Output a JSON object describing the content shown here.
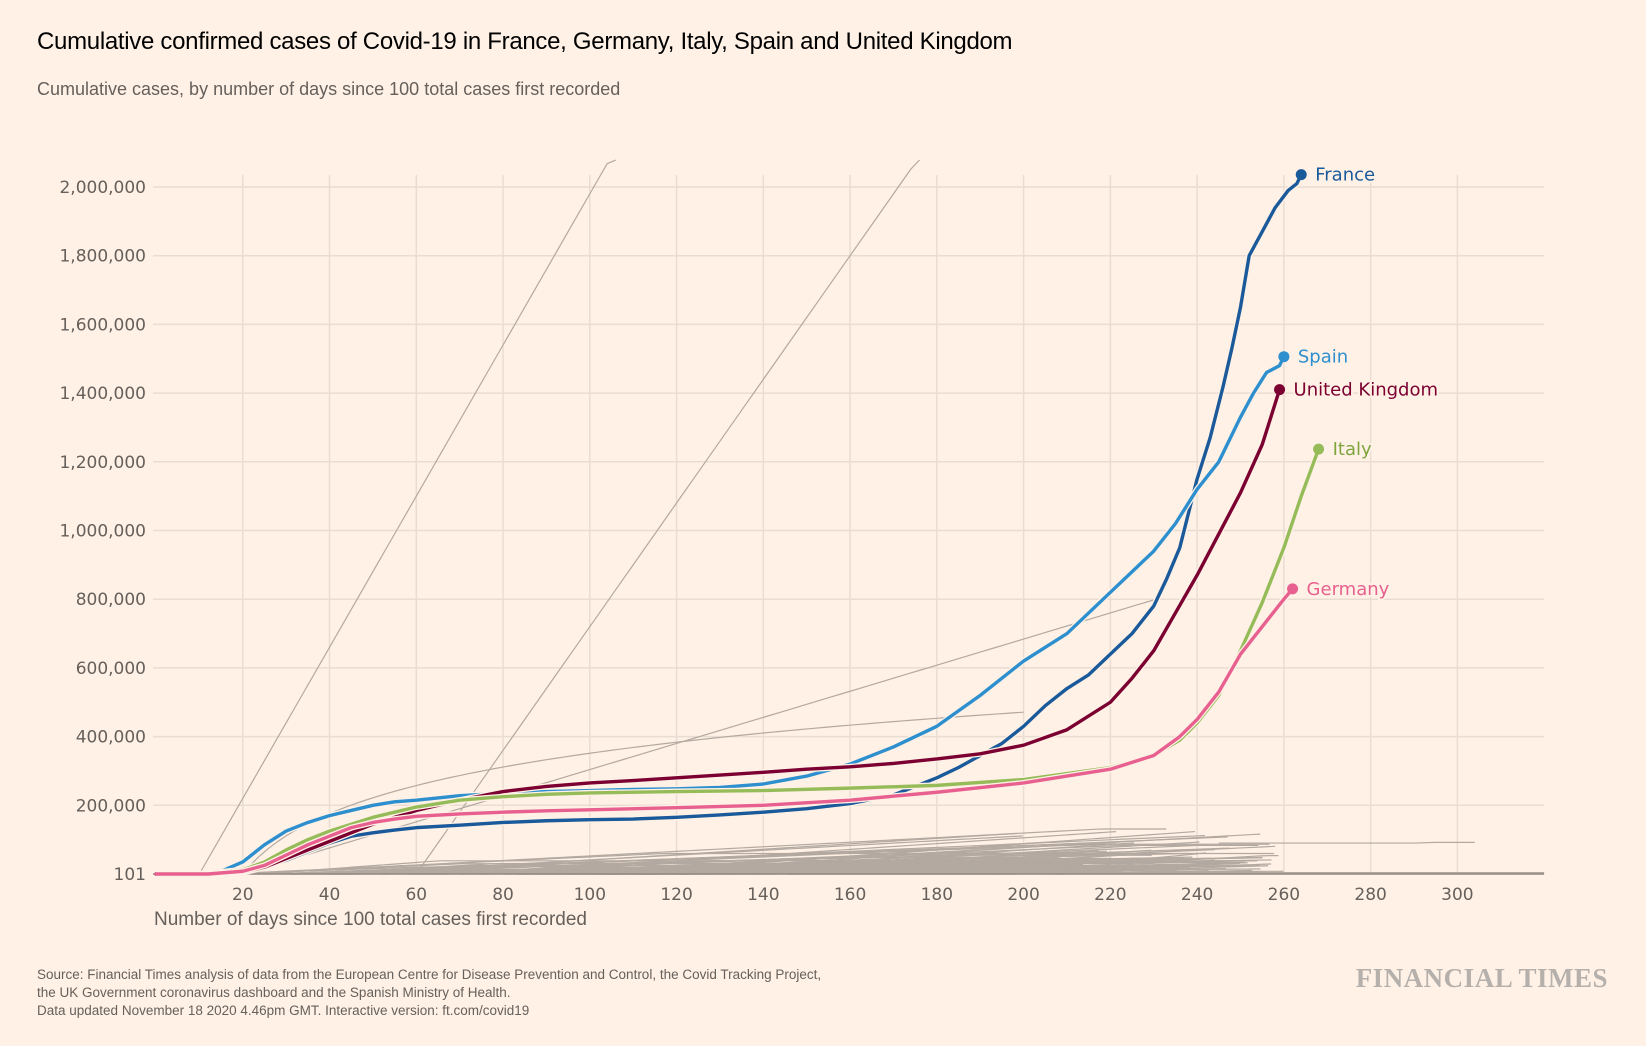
{
  "header": {
    "title": "Cumulative confirmed cases of Covid-19 in France, Germany, Italy, Spain and United Kingdom",
    "subtitle": "Cumulative cases, by number of days since 100 total cases first recorded"
  },
  "footer": {
    "lines": [
      "Source: Financial Times analysis of data from the European Centre for Disease Prevention and Control, the Covid Tracking Project,",
      "the UK Government coronavirus dashboard and the Spanish Ministry of Health.",
      "Data updated November 18 2020 4.46pm GMT. Interactive version: ft.com/covid19"
    ],
    "logo": "FINANCIAL TIMES"
  },
  "chart_data": {
    "type": "line",
    "title": "Cumulative confirmed cases of Covid-19 in France, Germany, Italy, Spain and United Kingdom",
    "subtitle": "Cumulative cases, by number of days since 100 total cases first recorded",
    "xlabel": "Number of days since 100 total cases first recorded",
    "ylabel": "",
    "xlim": [
      0,
      320
    ],
    "ylim": [
      101,
      2000000
    ],
    "grid": true,
    "x_ticks": [
      20,
      40,
      60,
      80,
      100,
      120,
      140,
      160,
      180,
      200,
      220,
      240,
      260,
      280,
      300
    ],
    "x_tick_labels": [
      "20",
      "40",
      "60",
      "80",
      "100",
      "120",
      "140",
      "160",
      "180",
      "200",
      "220",
      "240",
      "260",
      "280",
      "300"
    ],
    "y_ticks": [
      101,
      200000,
      400000,
      600000,
      800000,
      1000000,
      1200000,
      1400000,
      1600000,
      1800000,
      2000000
    ],
    "y_tick_labels": [
      "101",
      "200,000",
      "400,000",
      "600,000",
      "800,000",
      "1,000,000",
      "1,200,000",
      "1,400,000",
      "1,600,000",
      "1,800,000",
      "2,000,000"
    ],
    "legend": "direct-labels at line ends",
    "series": [
      {
        "name": "France",
        "color": "#1a5a9b",
        "x": [
          0,
          12,
          20,
          25,
          30,
          35,
          40,
          45,
          50,
          55,
          60,
          70,
          80,
          90,
          100,
          110,
          120,
          130,
          140,
          150,
          160,
          170,
          180,
          185,
          190,
          195,
          200,
          205,
          210,
          215,
          220,
          225,
          230,
          233,
          236,
          238,
          240,
          243,
          246,
          248,
          250,
          252,
          255,
          258,
          261,
          263,
          264
        ],
        "values": [
          101,
          101,
          3000,
          20000,
          40000,
          65000,
          90000,
          110000,
          120000,
          128000,
          135000,
          142000,
          150000,
          155000,
          158000,
          160000,
          165000,
          172000,
          180000,
          190000,
          205000,
          230000,
          280000,
          310000,
          345000,
          380000,
          430000,
          490000,
          540000,
          580000,
          640000,
          700000,
          780000,
          860000,
          950000,
          1050000,
          1150000,
          1270000,
          1420000,
          1530000,
          1650000,
          1800000,
          1870000,
          1940000,
          1990000,
          2010000,
          2036000
        ]
      },
      {
        "name": "Spain",
        "color": "#2e8fcf",
        "x": [
          0,
          10,
          15,
          20,
          25,
          30,
          35,
          40,
          45,
          50,
          55,
          60,
          70,
          80,
          90,
          100,
          110,
          120,
          130,
          140,
          150,
          160,
          170,
          180,
          190,
          200,
          210,
          215,
          220,
          225,
          230,
          235,
          240,
          245,
          250,
          253,
          256,
          259,
          260
        ],
        "values": [
          101,
          101,
          8000,
          35000,
          85000,
          125000,
          150000,
          170000,
          185000,
          200000,
          210000,
          215000,
          228000,
          235000,
          240000,
          243000,
          246000,
          248000,
          252000,
          262000,
          285000,
          320000,
          370000,
          430000,
          520000,
          620000,
          700000,
          760000,
          820000,
          880000,
          940000,
          1020000,
          1120000,
          1200000,
          1330000,
          1400000,
          1460000,
          1480000,
          1506000
        ]
      },
      {
        "name": "United Kingdom",
        "color": "#7b0031",
        "x": [
          0,
          12,
          20,
          25,
          30,
          35,
          40,
          45,
          50,
          55,
          60,
          70,
          80,
          90,
          100,
          110,
          120,
          130,
          140,
          150,
          160,
          170,
          180,
          190,
          200,
          210,
          220,
          225,
          230,
          235,
          240,
          245,
          250,
          255,
          259
        ],
        "values": [
          101,
          101,
          5000,
          20000,
          45000,
          70000,
          95000,
          120000,
          145000,
          165000,
          185000,
          215000,
          240000,
          255000,
          265000,
          272000,
          280000,
          288000,
          296000,
          305000,
          312000,
          322000,
          335000,
          350000,
          375000,
          420000,
          500000,
          570000,
          650000,
          760000,
          870000,
          990000,
          1110000,
          1250000,
          1410000
        ]
      },
      {
        "name": "Italy",
        "color": "#96bc59",
        "x": [
          0,
          10,
          20,
          25,
          30,
          35,
          40,
          45,
          50,
          55,
          60,
          70,
          80,
          90,
          100,
          120,
          140,
          160,
          180,
          200,
          220,
          230,
          236,
          240,
          245,
          250,
          255,
          260,
          264,
          268
        ],
        "values": [
          101,
          101,
          12000,
          35000,
          70000,
          100000,
          125000,
          145000,
          165000,
          180000,
          195000,
          215000,
          225000,
          232000,
          236000,
          240000,
          243000,
          250000,
          258000,
          275000,
          310000,
          345000,
          390000,
          440000,
          520000,
          650000,
          790000,
          950000,
          1100000,
          1237000
        ]
      },
      {
        "name": "Germany",
        "color": "#e8608f",
        "x": [
          0,
          12,
          20,
          25,
          30,
          35,
          40,
          45,
          50,
          55,
          60,
          70,
          80,
          90,
          100,
          120,
          140,
          160,
          180,
          200,
          220,
          230,
          236,
          240,
          245,
          250,
          255,
          260,
          262
        ],
        "values": [
          101,
          101,
          8000,
          25000,
          55000,
          85000,
          110000,
          135000,
          150000,
          160000,
          168000,
          175000,
          180000,
          184000,
          187000,
          193000,
          200000,
          215000,
          238000,
          265000,
          305000,
          345000,
          400000,
          450000,
          530000,
          640000,
          720000,
          800000,
          830000
        ]
      }
    ],
    "background_series_color": "#b3a9a1",
    "background_series_note": "Other countries shown as thin grey lines (unlabelled)"
  }
}
